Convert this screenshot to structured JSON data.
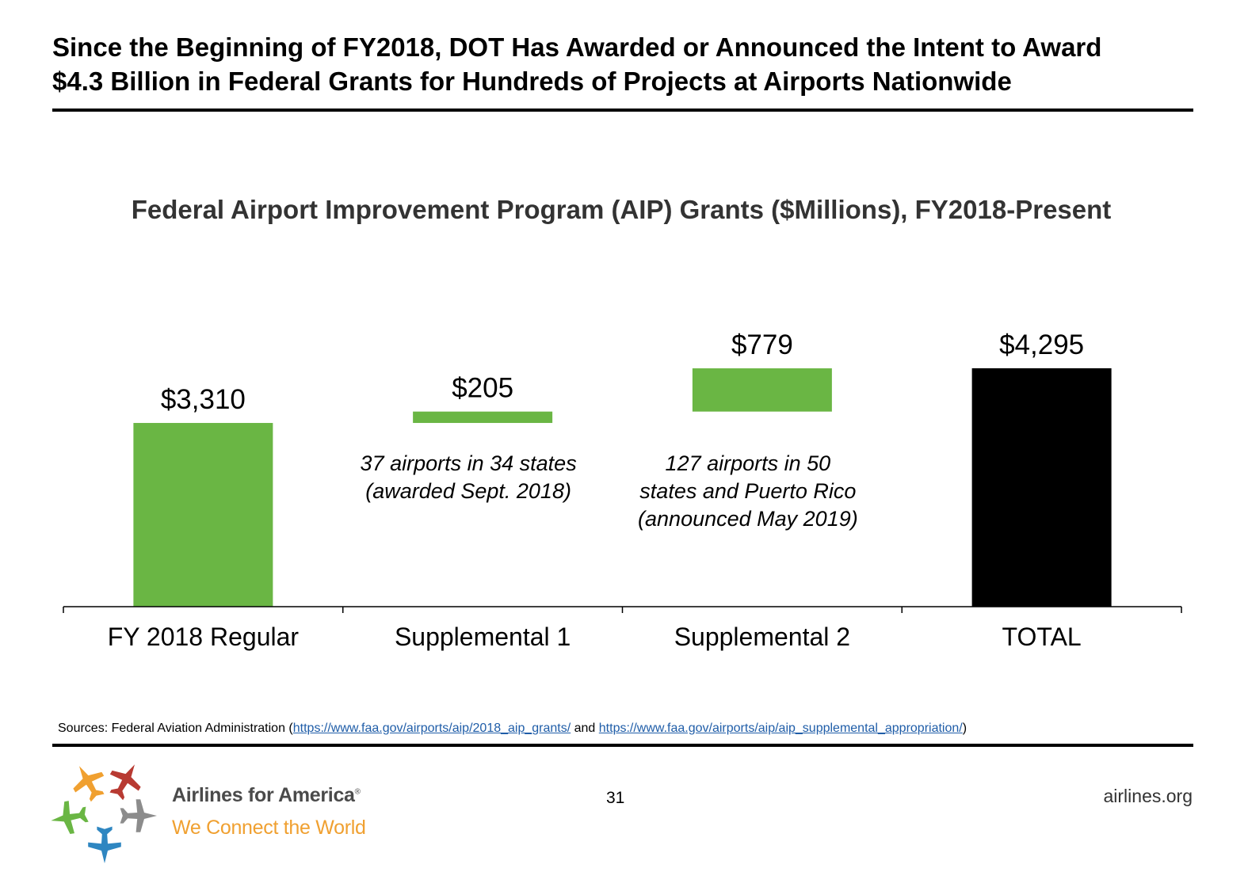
{
  "headline": {
    "line1": "Since the Beginning of FY2018, DOT Has Awarded or Announced the Intent to Award",
    "line2": "$4.3 Billion in Federal Grants for Hundreds of Projects at Airports Nationwide"
  },
  "colors": {
    "green": "#6ab644",
    "black": "#000000",
    "axis": "#000000",
    "link": "#1f5da8"
  },
  "chart_data": {
    "type": "bar",
    "subtype": "waterfall",
    "title": "Federal Airport Improvement Program (AIP) Grants ($Millions), FY2018-Present",
    "categories": [
      "FY 2018 Regular",
      "Supplemental 1",
      "Supplemental 2",
      "TOTAL"
    ],
    "values": [
      3310,
      205,
      779,
      4295
    ],
    "bases": [
      0,
      3310,
      3515,
      0
    ],
    "value_labels": [
      "$3,310",
      "$205",
      "$779",
      "$4,295"
    ],
    "bar_colors": [
      "#6ab644",
      "#6ab644",
      "#6ab644",
      "#000000"
    ],
    "annotations": [
      {
        "category": "Supplemental 1",
        "lines": [
          "37 airports in 34 states",
          "(awarded Sept. 2018)"
        ]
      },
      {
        "category": "Supplemental 2",
        "lines": [
          "127 airports in 50",
          "states and Puerto Rico",
          "(announced May 2019)"
        ]
      }
    ],
    "xlabel": "",
    "ylabel": "",
    "ylim": [
      0,
      4295
    ],
    "grid": false,
    "legend": "none"
  },
  "sources": {
    "prefix": "Sources: Federal Aviation Administration (",
    "link1": "https://www.faa.gov/airports/aip/2018_aip_grants/",
    "middle": " and ",
    "link2": "https://www.faa.gov/airports/aip/aip_supplemental_appropriation/",
    "suffix": ")"
  },
  "footer": {
    "brand": "Airlines for America",
    "brand_mark": "®",
    "tagline": "We Connect the World",
    "page_number": "31",
    "site": "airlines.org"
  }
}
